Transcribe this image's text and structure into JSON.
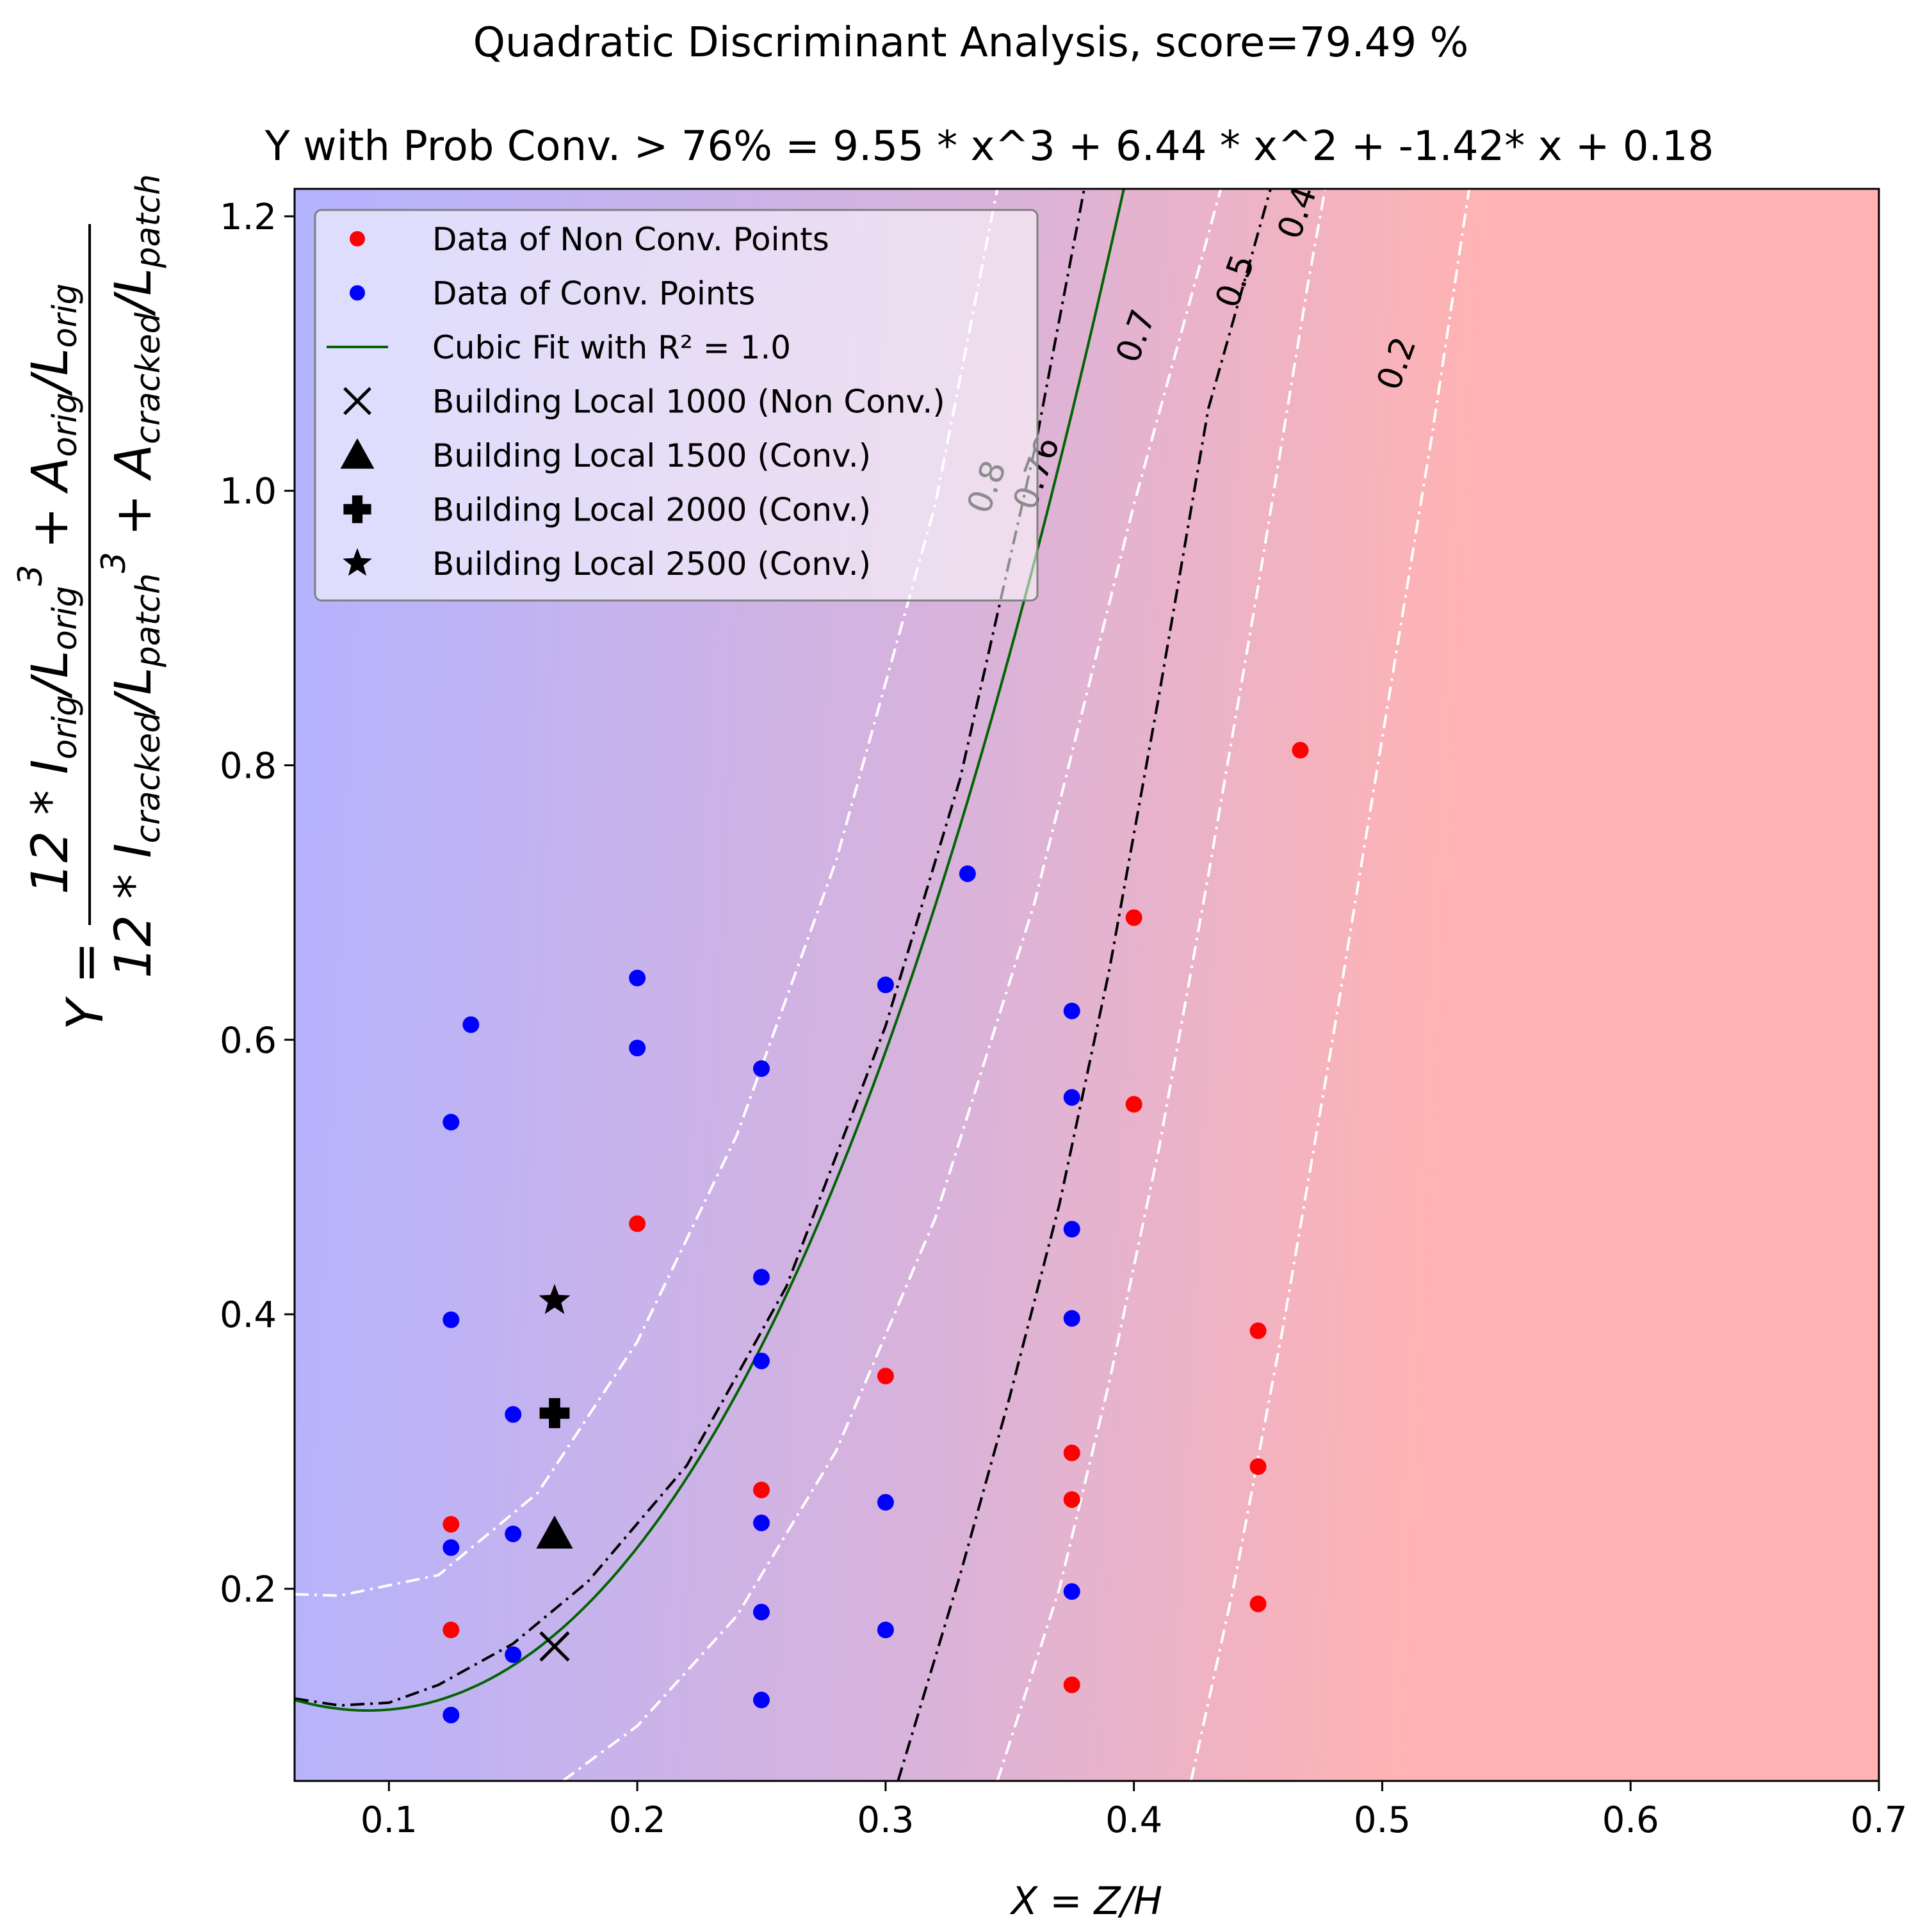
{
  "chart_data": {
    "type": "scatter",
    "title": "Quadratic Discriminant Analysis, score=79.49 %",
    "subtitle": "Y with Prob Conv. > 76% = 9.55 * x^3 + 6.44 * x^2 + -1.42* x + 0.18",
    "xlabel": "X = Z/H",
    "ylabel": "Y = (12*I_orig/L_orig^3 + A_orig/L_orig) / (12*I_cracked/L_patch^3 + A_cracked/L_patch)",
    "xlim": [
      0.062,
      0.7
    ],
    "ylim": [
      0.06,
      1.22
    ],
    "xticks": [
      "0.1",
      "0.2",
      "0.3",
      "0.4",
      "0.5",
      "0.6",
      "0.7"
    ],
    "yticks": [
      "0.2",
      "0.4",
      "0.6",
      "0.8",
      "1.0",
      "1.2"
    ],
    "xtick_values": [
      0.1,
      0.2,
      0.3,
      0.4,
      0.5,
      0.6,
      0.7
    ],
    "ytick_values": [
      0.2,
      0.4,
      0.6,
      0.8,
      1.0,
      1.2
    ],
    "background": {
      "conv_color": "#b3b3ff",
      "nonconv_color": "#ffb3b3"
    },
    "legend_position": "upper-left",
    "legend": [
      {
        "label": "Data of Non Conv. Points",
        "marker": "dot",
        "color": "#ff0000"
      },
      {
        "label": "Data of Conv. Points",
        "marker": "dot",
        "color": "#0000ff"
      },
      {
        "label": "Cubic Fit with R² = 1.0",
        "marker": "line",
        "color": "#006400"
      },
      {
        "label": "Building Local 1000 (Non Conv.)",
        "marker": "x",
        "color": "#000000"
      },
      {
        "label": "Building Local 1500 (Conv.)",
        "marker": "triangle",
        "color": "#000000"
      },
      {
        "label": "Building Local 2000 (Conv.)",
        "marker": "plus",
        "color": "#000000"
      },
      {
        "label": "Building Local 2500 (Conv.)",
        "marker": "star",
        "color": "#000000"
      }
    ],
    "series": [
      {
        "name": "Data of Non Conv. Points",
        "color": "#ff0000",
        "points": [
          [
            0.125,
            0.247
          ],
          [
            0.125,
            0.17
          ],
          [
            0.2,
            0.466
          ],
          [
            0.25,
            0.272
          ],
          [
            0.3,
            0.355
          ],
          [
            0.375,
            0.299
          ],
          [
            0.375,
            0.265
          ],
          [
            0.375,
            0.13
          ],
          [
            0.4,
            0.689
          ],
          [
            0.4,
            0.553
          ],
          [
            0.45,
            0.388
          ],
          [
            0.45,
            0.289
          ],
          [
            0.45,
            0.189
          ],
          [
            0.467,
            0.811
          ]
        ]
      },
      {
        "name": "Data of Conv. Points",
        "color": "#0000ff",
        "points": [
          [
            0.125,
            0.54
          ],
          [
            0.125,
            0.396
          ],
          [
            0.125,
            0.23
          ],
          [
            0.125,
            0.108
          ],
          [
            0.133,
            0.611
          ],
          [
            0.15,
            0.327
          ],
          [
            0.15,
            0.24
          ],
          [
            0.15,
            0.152
          ],
          [
            0.2,
            0.645
          ],
          [
            0.2,
            0.594
          ],
          [
            0.25,
            0.579
          ],
          [
            0.25,
            0.427
          ],
          [
            0.25,
            0.366
          ],
          [
            0.25,
            0.248
          ],
          [
            0.25,
            0.183
          ],
          [
            0.25,
            0.119
          ],
          [
            0.3,
            0.64
          ],
          [
            0.3,
            0.263
          ],
          [
            0.3,
            0.17
          ],
          [
            0.333,
            0.721
          ],
          [
            0.375,
            0.621
          ],
          [
            0.375,
            0.558
          ],
          [
            0.375,
            0.462
          ],
          [
            0.375,
            0.397
          ],
          [
            0.375,
            0.198
          ]
        ]
      }
    ],
    "buildings": [
      {
        "name": "Building Local 1000 (Non Conv.)",
        "marker": "x",
        "x": 0.1667,
        "y": 0.158
      },
      {
        "name": "Building Local 1500 (Conv.)",
        "marker": "triangle",
        "x": 0.1667,
        "y": 0.24
      },
      {
        "name": "Building Local 2000 (Conv.)",
        "marker": "plus",
        "x": 0.1667,
        "y": 0.328
      },
      {
        "name": "Building Local 2500 (Conv.)",
        "marker": "star",
        "x": 0.1667,
        "y": 0.41
      }
    ],
    "cubic_fit": {
      "coefficients": [
        9.55,
        6.44,
        -1.42,
        0.18
      ],
      "r2": "1.0",
      "color": "#006400"
    },
    "contours": [
      {
        "level": "0.8",
        "color": "#ffffff",
        "points": [
          [
            0.062,
            0.196
          ],
          [
            0.08,
            0.195
          ],
          [
            0.12,
            0.21
          ],
          [
            0.16,
            0.27
          ],
          [
            0.2,
            0.38
          ],
          [
            0.24,
            0.53
          ],
          [
            0.28,
            0.73
          ],
          [
            0.32,
            0.99
          ],
          [
            0.345,
            1.22
          ]
        ],
        "label_at": [
          0.345,
          1.0
        ]
      },
      {
        "level": "0.76",
        "color": "#000000",
        "points": [
          [
            0.062,
            0.12
          ],
          [
            0.08,
            0.115
          ],
          [
            0.1,
            0.117
          ],
          [
            0.12,
            0.13
          ],
          [
            0.15,
            0.16
          ],
          [
            0.18,
            0.205
          ],
          [
            0.22,
            0.29
          ],
          [
            0.26,
            0.42
          ],
          [
            0.3,
            0.61
          ],
          [
            0.33,
            0.79
          ],
          [
            0.36,
            1.03
          ],
          [
            0.38,
            1.22
          ]
        ],
        "label_at": [
          0.365,
          1.01
        ]
      },
      {
        "level": "0.7",
        "color": "#ffffff",
        "points": [
          [
            0.17,
            0.06
          ],
          [
            0.2,
            0.1
          ],
          [
            0.24,
            0.18
          ],
          [
            0.28,
            0.3
          ],
          [
            0.32,
            0.47
          ],
          [
            0.36,
            0.7
          ],
          [
            0.4,
            0.99
          ],
          [
            0.435,
            1.22
          ]
        ],
        "label_at": [
          0.405,
          1.11
        ]
      },
      {
        "level": "0.5",
        "color": "#000000",
        "points": [
          [
            0.305,
            0.06
          ],
          [
            0.33,
            0.21
          ],
          [
            0.35,
            0.34
          ],
          [
            0.37,
            0.48
          ],
          [
            0.39,
            0.65
          ],
          [
            0.41,
            0.85
          ],
          [
            0.43,
            1.06
          ],
          [
            0.455,
            1.22
          ]
        ],
        "label_at": [
          0.445,
          1.15
        ]
      },
      {
        "level": "0.4",
        "color": "#ffffff",
        "points": [
          [
            0.345,
            0.06
          ],
          [
            0.37,
            0.2
          ],
          [
            0.39,
            0.35
          ],
          [
            0.41,
            0.52
          ],
          [
            0.43,
            0.72
          ],
          [
            0.45,
            0.93
          ],
          [
            0.47,
            1.15
          ],
          [
            0.477,
            1.22
          ]
        ],
        "label_at": [
          0.47,
          1.2
        ]
      },
      {
        "level": "0.2",
        "color": "#ffffff",
        "points": [
          [
            0.423,
            0.06
          ],
          [
            0.44,
            0.2
          ],
          [
            0.46,
            0.39
          ],
          [
            0.48,
            0.6
          ],
          [
            0.5,
            0.82
          ],
          [
            0.52,
            1.04
          ],
          [
            0.535,
            1.22
          ]
        ],
        "label_at": [
          0.51,
          1.09
        ]
      }
    ]
  }
}
